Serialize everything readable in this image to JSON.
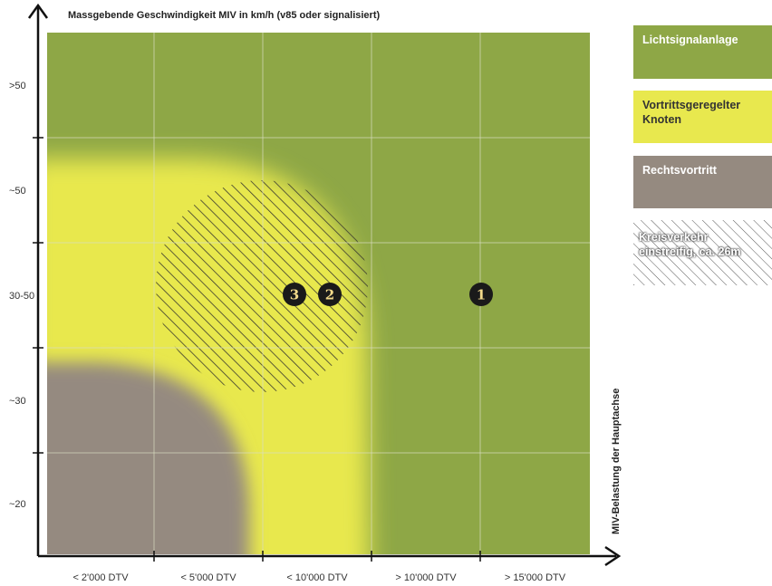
{
  "chart_data": {
    "type": "heatmap",
    "title": "Massgebende Geschwindigkeit MIV in km/h (v85 oder signalisiert)",
    "xlabel": "MIV-Belastung der Hauptachse",
    "x_ticks": [
      "< 2'000 DTV",
      "< 5'000 DTV",
      "< 10'000 DTV",
      "> 10'000 DTV",
      "> 15'000 DTV"
    ],
    "y_ticks": [
      ">50",
      "~50",
      "30-50",
      "~30",
      "~20"
    ],
    "legend": [
      {
        "label": "Lichtsignalanlage",
        "color": "#8ea746"
      },
      {
        "label": "Vortrittsgeregelter Knoten",
        "color": "#e8e84e"
      },
      {
        "label": "Rechtsvortritt",
        "color": "#958a80"
      },
      {
        "label": "Kreisverkehr einstreifig, ca. 26m",
        "pattern": "hatched"
      }
    ],
    "markers": [
      {
        "label": "3",
        "x": "< 10'000 DTV",
        "y": "30-50"
      },
      {
        "label": "2",
        "x": "< 10'000 DTV",
        "y": "30-50"
      },
      {
        "label": "1",
        "x": "> 15'000 DTV",
        "y": "30-50"
      }
    ]
  },
  "colors": {
    "green": "#8ea746",
    "yellow": "#e8e84e",
    "grey": "#958a80",
    "grid": "#d9dcc0"
  }
}
